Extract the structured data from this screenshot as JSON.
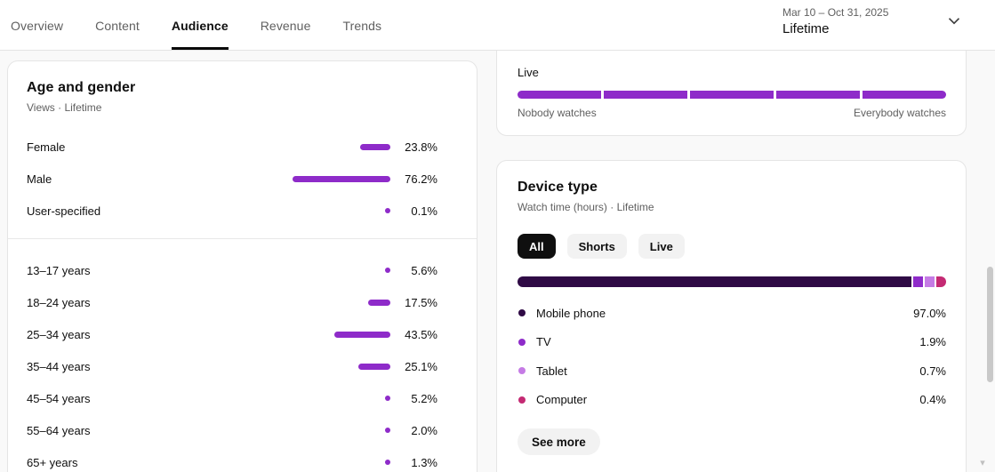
{
  "header": {
    "tabs": [
      {
        "label": "Overview",
        "active": false
      },
      {
        "label": "Content",
        "active": false
      },
      {
        "label": "Audience",
        "active": true
      },
      {
        "label": "Revenue",
        "active": false
      },
      {
        "label": "Trends",
        "active": false
      }
    ],
    "date_range": "Mar 10 – Oct 31, 2025",
    "period": "Lifetime"
  },
  "colors": {
    "accent": "#8e2bc9"
  },
  "cards": {
    "live_watch": {
      "label": "Live",
      "left_label": "Nobody watches",
      "right_label": "Everybody watches"
    },
    "age_gender": {
      "title": "Age and gender",
      "subtitle": "Views · Lifetime",
      "gender_rows": [
        {
          "label": "Female",
          "value": "23.8%",
          "pct": 23.8
        },
        {
          "label": "Male",
          "value": "76.2%",
          "pct": 76.2
        },
        {
          "label": "User-specified",
          "value": "0.1%",
          "pct": 0.1
        }
      ],
      "age_rows": [
        {
          "label": "13–17 years",
          "value": "5.6%",
          "pct": 5.6
        },
        {
          "label": "18–24 years",
          "value": "17.5%",
          "pct": 17.5
        },
        {
          "label": "25–34 years",
          "value": "43.5%",
          "pct": 43.5
        },
        {
          "label": "35–44 years",
          "value": "25.1%",
          "pct": 25.1
        },
        {
          "label": "45–54 years",
          "value": "5.2%",
          "pct": 5.2
        },
        {
          "label": "55–64 years",
          "value": "2.0%",
          "pct": 2.0
        },
        {
          "label": "65+ years",
          "value": "1.3%",
          "pct": 1.3
        }
      ]
    },
    "device_type": {
      "title": "Device type",
      "subtitle": "Watch time (hours) · Lifetime",
      "chips": [
        {
          "label": "All",
          "selected": true
        },
        {
          "label": "Shorts",
          "selected": false
        },
        {
          "label": "Live",
          "selected": false
        }
      ],
      "devices": [
        {
          "label": "Mobile phone",
          "value": "97.0%",
          "pct": 97.0,
          "color": "#2f0a45"
        },
        {
          "label": "TV",
          "value": "1.9%",
          "pct": 1.9,
          "color": "#8e2bc9"
        },
        {
          "label": "Tablet",
          "value": "0.7%",
          "pct": 0.7,
          "color": "#c57be5"
        },
        {
          "label": "Computer",
          "value": "0.4%",
          "pct": 0.4,
          "color": "#c42a73"
        }
      ],
      "see_more_label": "See more"
    }
  }
}
